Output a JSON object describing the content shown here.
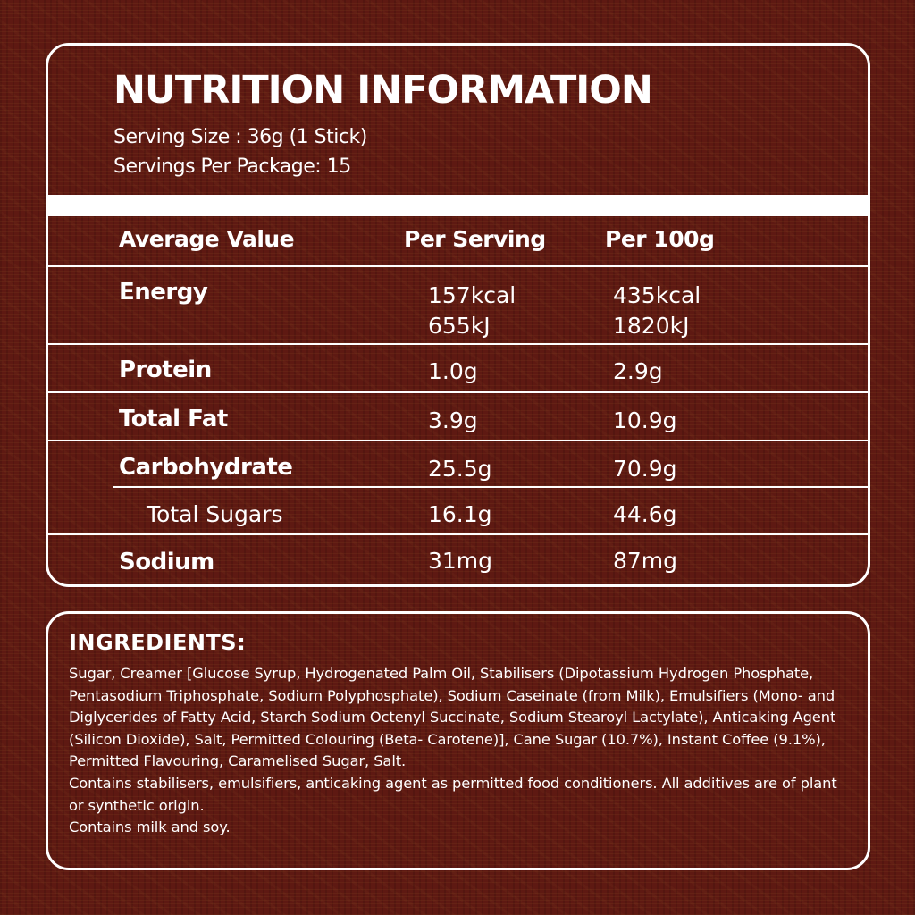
{
  "nutrition": {
    "title": "NUTRITION INFORMATION",
    "serving_size": "Serving Size : 36g (1 Stick)",
    "servings_per_package": "Servings Per Package: 15",
    "columns": [
      "Average Value",
      "Per Serving",
      "Per 100g"
    ],
    "rows": [
      {
        "label": "Energy",
        "per_serving": [
          "157kcal",
          "655kJ"
        ],
        "per_100g": [
          "435kcal",
          "1820kJ"
        ]
      },
      {
        "label": "Protein",
        "per_serving": [
          "1.0g"
        ],
        "per_100g": [
          "2.9g"
        ]
      },
      {
        "label": "Total Fat",
        "per_serving": [
          "3.9g"
        ],
        "per_100g": [
          "10.9g"
        ]
      },
      {
        "label": "Carbohydrate",
        "per_serving": [
          "25.5g"
        ],
        "per_100g": [
          "70.9g"
        ]
      },
      {
        "label": "Total Sugars",
        "per_serving": [
          "16.1g"
        ],
        "per_100g": [
          "44.6g"
        ]
      },
      {
        "label": "Sodium",
        "per_serving": [
          "31mg"
        ],
        "per_100g": [
          "87mg"
        ]
      }
    ]
  },
  "ingredients": {
    "title": "INGREDIENTS:",
    "paragraphs": [
      "Sugar, Creamer [Glucose Syrup, Hydrogenated Palm Oil, Stabilisers (Dipotassium Hydrogen Phosphate, Pentasodium Triphosphate, Sodium Polyphosphate), Sodium Caseinate (from Milk), Emulsifiers (Mono- and Diglycerides of Fatty Acid, Starch Sodium Octenyl Succinate, Sodium Stearoyl Lactylate), Anticaking Agent (Silicon Dioxide), Salt, Permitted Colouring (Beta- Carotene)], Cane Sugar (10.7%), Instant Coffee (9.1%), Permitted Flavouring, Caramelised Sugar, Salt.",
      "Contains stabilisers, emulsifiers, anticaking agent as permitted food conditioners. All additives are of plant or synthetic origin.",
      "Contains milk and soy."
    ]
  },
  "colors": {
    "background": "#5e1912",
    "text": "#ffffff",
    "border": "#ffffff"
  }
}
